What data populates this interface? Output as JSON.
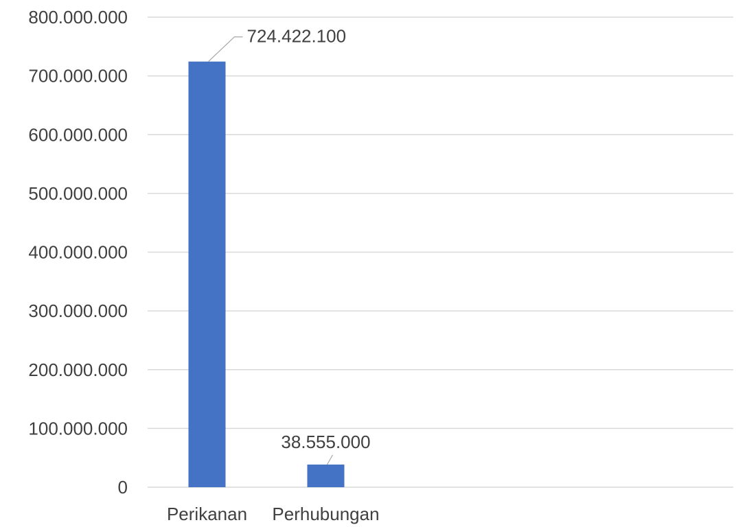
{
  "chart_data": {
    "type": "bar",
    "categories": [
      "Perikanan",
      "Perhubungan"
    ],
    "values": [
      724422100,
      38555000
    ],
    "value_labels": [
      "724.422.100",
      "38.555.000"
    ],
    "ylim": [
      0,
      800000000
    ],
    "yticks": [
      0,
      100000000,
      200000000,
      300000000,
      400000000,
      500000000,
      600000000,
      700000000,
      800000000
    ],
    "ytick_labels": [
      "0",
      "100.000.000",
      "200.000.000",
      "300.000.000",
      "400.000.000",
      "500.000.000",
      "600.000.000",
      "700.000.000",
      "800.000.000"
    ],
    "title": "",
    "xlabel": "",
    "ylabel": "",
    "grid": true,
    "legend": false,
    "bar_color": "#4472c4"
  }
}
